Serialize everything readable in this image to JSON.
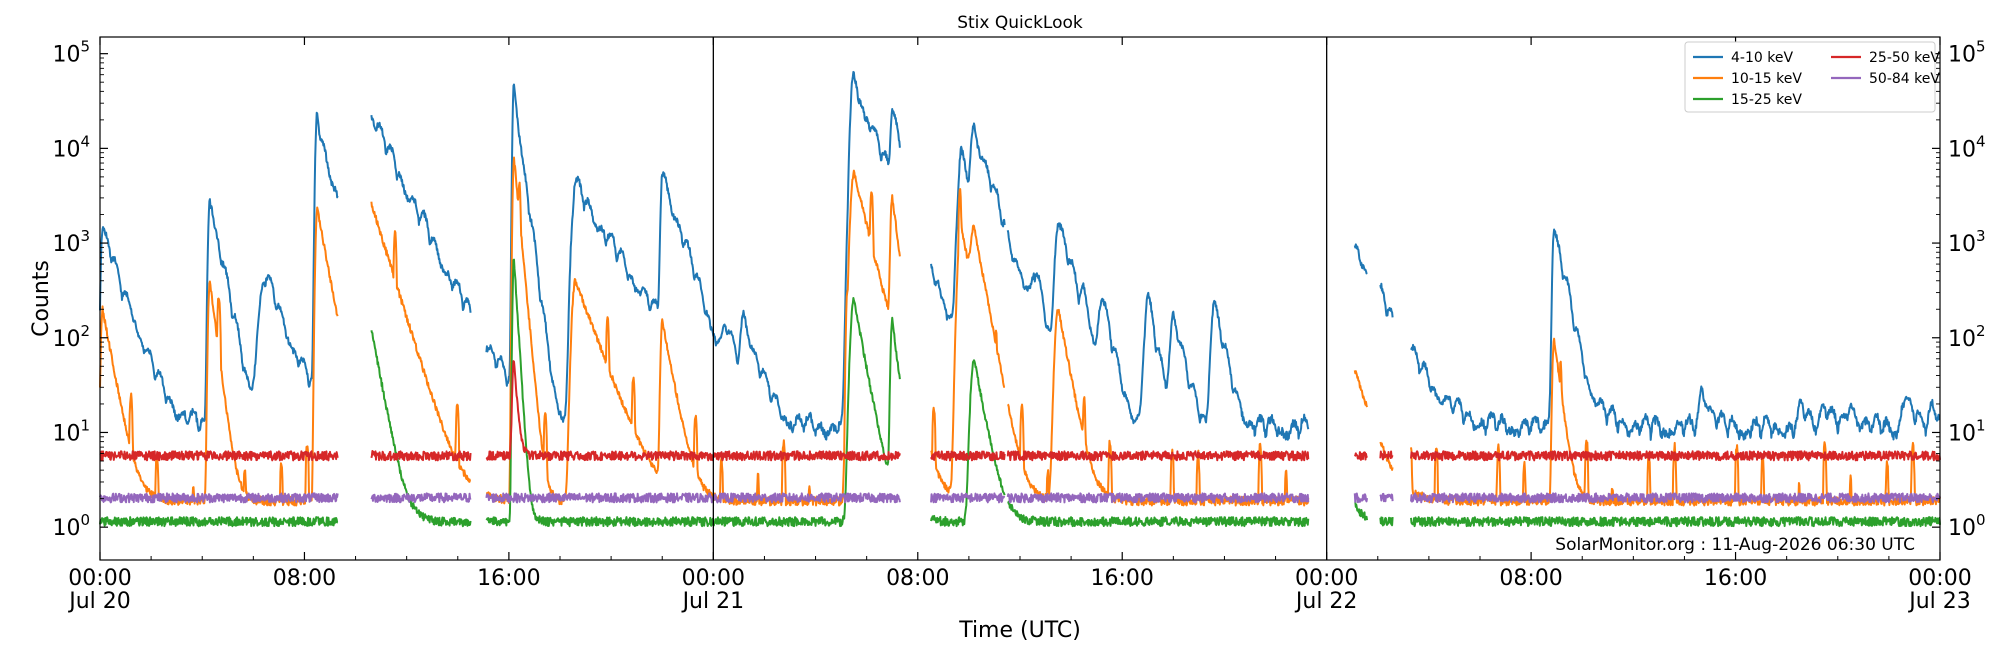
{
  "chart_data": {
    "type": "line",
    "title": "Stix QuickLook",
    "xlabel": "Time (UTC)",
    "ylabel": "Counts",
    "yscale": "log",
    "ylim": [
      0.45,
      150000
    ],
    "xlim_hours": [
      0,
      72
    ],
    "x_ticks": [
      {
        "hour": 0,
        "time": "00:00",
        "date": "Jul 20"
      },
      {
        "hour": 8,
        "time": "08:00",
        "date": ""
      },
      {
        "hour": 16,
        "time": "16:00",
        "date": ""
      },
      {
        "hour": 24,
        "time": "00:00",
        "date": "Jul 21"
      },
      {
        "hour": 32,
        "time": "08:00",
        "date": ""
      },
      {
        "hour": 40,
        "time": "16:00",
        "date": ""
      },
      {
        "hour": 48,
        "time": "00:00",
        "date": "Jul 22"
      },
      {
        "hour": 56,
        "time": "08:00",
        "date": ""
      },
      {
        "hour": 64,
        "time": "16:00",
        "date": ""
      },
      {
        "hour": 72,
        "time": "00:00",
        "date": "Jul 23"
      }
    ],
    "y_ticks": [
      {
        "value": 1,
        "base": "10",
        "exp": "0"
      },
      {
        "value": 10,
        "base": "10",
        "exp": "1"
      },
      {
        "value": 100,
        "base": "10",
        "exp": "2"
      },
      {
        "value": 1000,
        "base": "10",
        "exp": "3"
      },
      {
        "value": 10000,
        "base": "10",
        "exp": "4"
      },
      {
        "value": 100000,
        "base": "10",
        "exp": "5"
      }
    ],
    "day_boundaries_hours": [
      24,
      48
    ],
    "grid": false,
    "legend_placement": "top-right",
    "data_gaps_hours": [
      [
        9.3,
        10.6
      ],
      [
        14.5,
        15.1
      ],
      [
        31.3,
        32.5
      ],
      [
        35.4,
        35.5
      ],
      [
        47.3,
        49.1
      ],
      [
        49.6,
        50.1
      ],
      [
        50.6,
        51.3
      ]
    ],
    "note": "",
    "series": [
      {
        "name": "4-10 keV",
        "color": "#1f77b4",
        "baseline": 9,
        "peaks": [
          [
            0.1,
            1300,
            0.05,
            0.4
          ],
          [
            0.5,
            70,
            0.3,
            0.6
          ],
          [
            1.3,
            70,
            0.3,
            0.6
          ],
          [
            4.3,
            2700,
            0.05,
            0.3
          ],
          [
            5.0,
            20,
            0.1,
            0.3
          ],
          [
            6.5,
            350,
            0.2,
            0.6
          ],
          [
            8.5,
            17000,
            0.05,
            0.4
          ],
          [
            9.5,
            85000,
            0.04,
            0.3
          ],
          [
            10.4,
            22000,
            0.1,
            0.8
          ],
          [
            11.5,
            150,
            0.1,
            0.4
          ],
          [
            16.2,
            38000,
            0.04,
            0.2
          ],
          [
            18.6,
            3300,
            0.1,
            1.0
          ],
          [
            22.0,
            4400,
            0.05,
            0.5
          ],
          [
            24.5,
            70,
            0.1,
            0.4
          ],
          [
            25.2,
            120,
            0.1,
            0.4
          ],
          [
            29.5,
            43000,
            0.1,
            0.6
          ],
          [
            30.2,
            130,
            0.1,
            0.4
          ],
          [
            31.0,
            20000,
            0.05,
            0.3
          ],
          [
            32.8,
            130,
            0.1,
            0.3
          ],
          [
            33.7,
            6500,
            0.1,
            0.4
          ],
          [
            34.2,
            12000,
            0.1,
            0.5
          ],
          [
            35.9,
            150,
            0.1,
            0.3
          ],
          [
            36.6,
            300,
            0.1,
            0.3
          ],
          [
            37.5,
            1500,
            0.1,
            0.4
          ],
          [
            38.5,
            120,
            0.1,
            0.3
          ],
          [
            39.2,
            200,
            0.1,
            0.3
          ],
          [
            41.0,
            200,
            0.1,
            0.3
          ],
          [
            42.0,
            150,
            0.1,
            0.3
          ],
          [
            43.6,
            200,
            0.1,
            0.3
          ],
          [
            48.0,
            3000,
            0.05,
            0.8
          ],
          [
            48.9,
            160,
            0.1,
            0.3
          ],
          [
            56.9,
            1300,
            0.05,
            0.3
          ],
          [
            56.9,
            40,
            0.1,
            0.8
          ],
          [
            62.7,
            25,
            0.1,
            0.3
          ],
          [
            66.6,
            15,
            0.1,
            0.3
          ],
          [
            67.4,
            18,
            0.1,
            0.3
          ],
          [
            68.5,
            16,
            0.1,
            0.3
          ],
          [
            70.6,
            20,
            0.1,
            0.3
          ],
          [
            71.7,
            18,
            0.1,
            0.3
          ]
        ],
        "gaps": [
          [
            9.3,
            10.6
          ],
          [
            14.5,
            15.1
          ],
          [
            35.4,
            35.5
          ],
          [
            47.3,
            49.1
          ],
          [
            56.6,
            56.6
          ]
        ]
      },
      {
        "name": "10-15 keV",
        "color": "#ff7f0e",
        "baseline": 1.9,
        "peaks": [
          [
            0.1,
            200,
            0.05,
            0.3
          ],
          [
            4.3,
            400,
            0.05,
            0.2
          ],
          [
            8.5,
            2300,
            0.05,
            0.3
          ],
          [
            9.5,
            19000,
            0.04,
            0.2
          ],
          [
            10.4,
            4000,
            0.1,
            0.5
          ],
          [
            16.2,
            8000,
            0.04,
            0.15
          ],
          [
            18.6,
            400,
            0.1,
            0.6
          ],
          [
            22.0,
            150,
            0.05,
            0.3
          ],
          [
            29.5,
            5500,
            0.1,
            0.4
          ],
          [
            31.0,
            3000,
            0.05,
            0.2
          ],
          [
            33.7,
            1500,
            0.1,
            0.3
          ],
          [
            34.2,
            1200,
            0.1,
            0.3
          ],
          [
            37.5,
            200,
            0.1,
            0.3
          ],
          [
            48.0,
            400,
            0.05,
            0.5
          ],
          [
            56.9,
            100,
            0.05,
            0.2
          ]
        ]
      },
      {
        "name": "15-25 keV",
        "color": "#2ca02c",
        "baseline": 1.15,
        "peaks": [
          [
            9.5,
            1500,
            0.04,
            0.2
          ],
          [
            10.4,
            250,
            0.1,
            0.3
          ],
          [
            16.2,
            700,
            0.04,
            0.1
          ],
          [
            29.5,
            250,
            0.1,
            0.3
          ],
          [
            31.0,
            150,
            0.05,
            0.2
          ],
          [
            34.2,
            60,
            0.1,
            0.3
          ],
          [
            48.0,
            25,
            0.05,
            0.3
          ]
        ]
      },
      {
        "name": "25-50 keV",
        "color": "#d62728",
        "baseline": 5.7,
        "peaks": [
          [
            9.5,
            25,
            0.05,
            0.2
          ],
          [
            16.2,
            60,
            0.05,
            0.1
          ]
        ]
      },
      {
        "name": "50-84 keV",
        "color": "#9467bd",
        "baseline": 2.05,
        "peaks": []
      }
    ]
  },
  "watermark": "SolarMonitor.org : 11-Aug-2026 06:30 UTC"
}
